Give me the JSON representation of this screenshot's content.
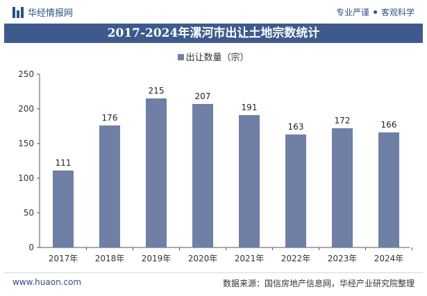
{
  "header": {
    "brand": "华经情报网",
    "tagline_left": "专业严谨",
    "tagline_right": "客观科学"
  },
  "colors": {
    "accent": "#3e5a8c",
    "bar": "#6f7fa6"
  },
  "chart_data": {
    "type": "bar",
    "title": "2017-2024年漯河市出让土地宗数统计",
    "categories": [
      "2017年",
      "2018年",
      "2019年",
      "2020年",
      "2021年",
      "2022年",
      "2023年",
      "2024年"
    ],
    "series": [
      {
        "name": "出让数量（宗）",
        "values": [
          111,
          176,
          215,
          207,
          191,
          163,
          172,
          166
        ]
      }
    ],
    "xlabel": "",
    "ylabel": "",
    "ylim": [
      0,
      250
    ],
    "yticks": [
      0,
      50,
      100,
      150,
      200,
      250
    ],
    "legend_position": "top-center",
    "grid": false
  },
  "footer": {
    "url": "www.huaon.com",
    "source": "数据来源：国信房地产信息网，华经产业研究院整理"
  }
}
